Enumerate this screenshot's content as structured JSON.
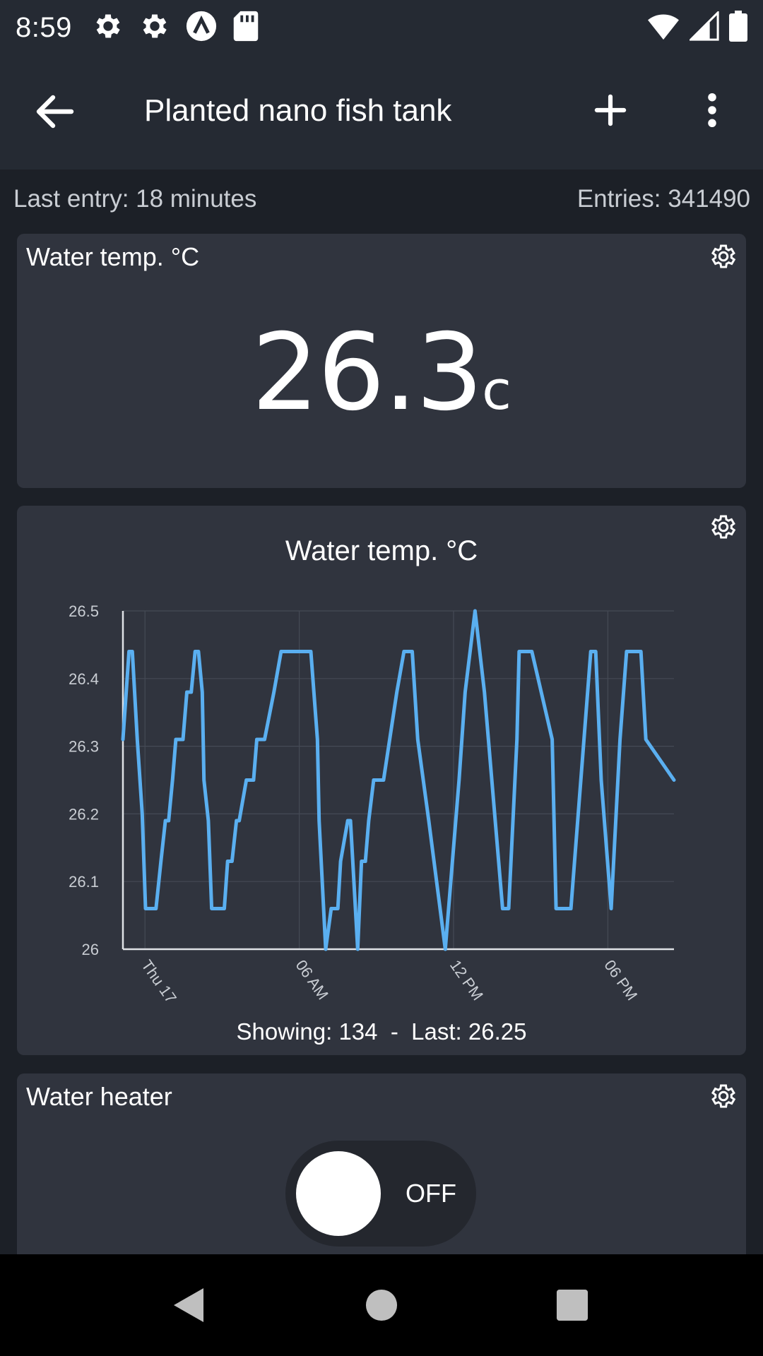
{
  "status_bar": {
    "time": "8:59",
    "icons": [
      "gear-icon",
      "gear-icon",
      "app-a-icon",
      "sd-card-icon"
    ],
    "right_icons": [
      "wifi-icon",
      "signal-icon",
      "battery-icon"
    ]
  },
  "app_bar": {
    "title": "Planted nano fish tank",
    "back_icon": "arrow-left-icon",
    "add_icon": "plus-icon",
    "menu_icon": "more-vert-icon"
  },
  "info": {
    "last_entry": "Last entry: 18 minutes",
    "entries": "Entries: 341490"
  },
  "value_card": {
    "title": "Water temp. °C",
    "value": "26.3",
    "unit": "c"
  },
  "chart_card": {
    "title": "Water temp. °C",
    "footer": "Showing: 134  -  Last: 26.25"
  },
  "heater_card": {
    "title": "Water heater",
    "toggle_label": "OFF",
    "toggle_on": false
  },
  "colors": {
    "background": "#1c2027",
    "bar": "#252a33",
    "card": "#30343e",
    "line": "#5aaff0",
    "grid": "#454a55"
  },
  "chart_data": {
    "type": "line",
    "title": "Water temp. °C",
    "xlabel": "",
    "ylabel": "",
    "ylim": [
      26,
      26.5
    ],
    "yticks": [
      "26.5",
      "26.4",
      "26.3",
      "26.2",
      "26.1",
      "26"
    ],
    "xticks": [
      {
        "label": "Thu 17",
        "x": 0.04
      },
      {
        "label": "06 AM",
        "x": 0.32
      },
      {
        "label": "12 PM",
        "x": 0.6
      },
      {
        "label": "06 PM",
        "x": 0.88
      }
    ],
    "grid": true,
    "series": [
      {
        "x": [
          0,
          0.011,
          0.017,
          0.026,
          0.035,
          0.041,
          0.047,
          0.053,
          0.06,
          0.069,
          0.077,
          0.083,
          0.09,
          0.096,
          0.102,
          0.109,
          0.116,
          0.124,
          0.131,
          0.137,
          0.144,
          0.147,
          0.155,
          0.161,
          0.17,
          0.184,
          0.19,
          0.198,
          0.206,
          0.211,
          0.224,
          0.237,
          0.243,
          0.257,
          0.274,
          0.287,
          0.295,
          0.314,
          0.341,
          0.353,
          0.356,
          0.368,
          0.378,
          0.384,
          0.39,
          0.395,
          0.408,
          0.413,
          0.426,
          0.433,
          0.44,
          0.446,
          0.455,
          0.473,
          0.497,
          0.51,
          0.525,
          0.535,
          0.555,
          0.585,
          0.598,
          0.61,
          0.621,
          0.639,
          0.656,
          0.689,
          0.7,
          0.715,
          0.719,
          0.742,
          0.779,
          0.786,
          0.813,
          0.849,
          0.858,
          0.868,
          0.886,
          0.902,
          0.914,
          0.94,
          0.949,
          1.0
        ],
        "y": [
          26.31,
          26.44,
          26.44,
          26.31,
          26.2,
          26.06,
          26.06,
          26.06,
          26.06,
          26.13,
          26.19,
          26.19,
          26.25,
          26.31,
          26.31,
          26.31,
          26.38,
          26.38,
          26.44,
          26.44,
          26.38,
          26.25,
          26.19,
          26.06,
          26.06,
          26.06,
          26.13,
          26.13,
          26.19,
          26.19,
          26.25,
          26.25,
          26.31,
          26.31,
          26.38,
          26.44,
          26.44,
          26.44,
          26.44,
          26.31,
          26.19,
          26.0,
          26.06,
          26.06,
          26.06,
          26.13,
          26.19,
          26.19,
          26.0,
          26.13,
          26.13,
          26.19,
          26.25,
          26.25,
          26.38,
          26.44,
          26.44,
          26.31,
          26.19,
          26.0,
          26.13,
          26.25,
          26.38,
          26.5,
          26.38,
          26.06,
          26.06,
          26.31,
          26.44,
          26.44,
          26.31,
          26.06,
          26.06,
          26.44,
          26.44,
          26.25,
          26.06,
          26.31,
          26.44,
          26.44,
          26.31,
          26.25
        ]
      }
    ]
  },
  "nav_bar": {
    "back_icon": "nav-back-icon",
    "home_icon": "nav-home-icon",
    "recents_icon": "nav-recents-icon"
  }
}
